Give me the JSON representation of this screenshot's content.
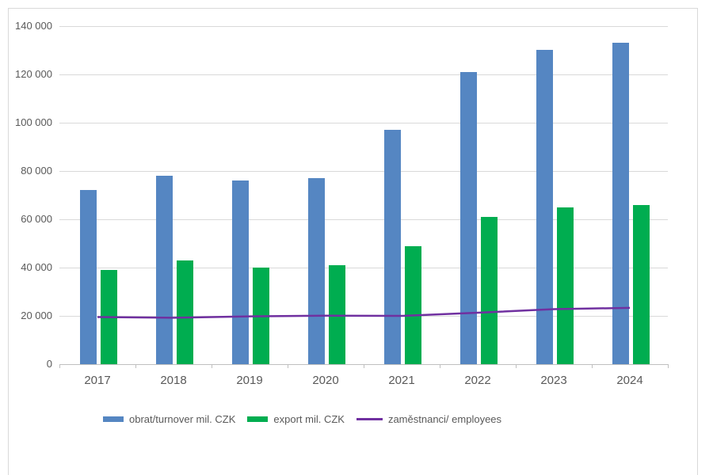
{
  "chart_data": {
    "type": "bar",
    "subtype": "grouped bars with overlay line",
    "title": "",
    "xlabel": "",
    "ylabel": "",
    "categories": [
      "2017",
      "2018",
      "2019",
      "2020",
      "2021",
      "2022",
      "2023",
      "2024"
    ],
    "series": [
      {
        "key": "turnover",
        "name": "obrat/turnover mil. CZK",
        "kind": "bar",
        "color": "#5586C2",
        "values": [
          72000,
          78000,
          76000,
          77000,
          97000,
          121000,
          130000,
          133000
        ]
      },
      {
        "key": "export",
        "name": "export mil. CZK",
        "kind": "bar",
        "color": "#00AD50",
        "values": [
          39000,
          43000,
          40000,
          41000,
          49000,
          61000,
          65000,
          66000
        ]
      },
      {
        "key": "employees",
        "name": "zaměstnanci/ employees",
        "kind": "line",
        "color": "#7030A0",
        "values": [
          19500,
          19200,
          19800,
          20100,
          20000,
          21300,
          22800,
          23300
        ]
      }
    ],
    "ylim": [
      0,
      140000
    ],
    "ytick_step": 20000,
    "ytick_labels": [
      "0",
      "20 000",
      "40 000",
      "60 000",
      "80 000",
      "100 000",
      "120 000",
      "140 000"
    ],
    "grid": true,
    "legend_position": "bottom",
    "colors": {
      "gridline": "#D9D9D9",
      "axis_line": "#BFBFBF",
      "tick_label_gray": "#595959",
      "frame_border": "#D9D9D9"
    }
  }
}
